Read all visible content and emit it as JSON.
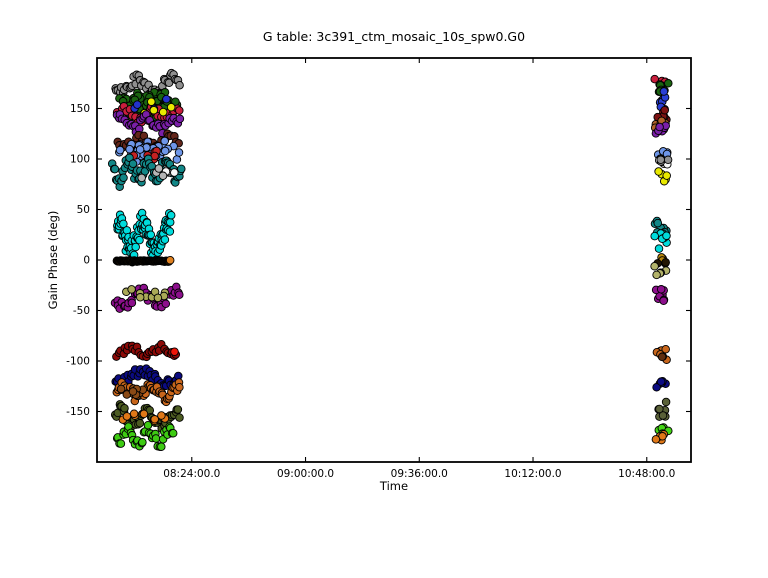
{
  "figure": {
    "background": "#ffffff",
    "frame_color": "#000000"
  },
  "chart_data": {
    "type": "scatter",
    "title": "G table: 3c391_ctm_mosaic_10s_spw0.G0",
    "xlabel": "Time",
    "ylabel": "Gain Phase (deg)",
    "grid": false,
    "legend": null,
    "marker": {
      "shape": "circle",
      "radius_px": 3.8,
      "edge_color": "#000000"
    },
    "x_axis": {
      "unit": "minutes_of_day",
      "lim": [
        474,
        662
      ],
      "tick_minutes": [
        504,
        540,
        576,
        612,
        648
      ],
      "tick_labels": [
        "08:24:00.0",
        "09:00:00.0",
        "09:36:00.0",
        "10:12:00.0",
        "10:48:00.0"
      ]
    },
    "y_axis": {
      "lim": [
        -200,
        200
      ],
      "ticks": [
        150,
        100,
        50,
        0,
        -50,
        -100,
        -150
      ],
      "tick_labels": [
        "150",
        "100",
        "50",
        "0",
        "-50",
        "-100",
        "-150"
      ]
    },
    "seed": 42,
    "clusters": [
      {
        "name": "left-gray-band",
        "color": "#8f8f8f",
        "n": 42,
        "t": [
          479.5,
          500.5
        ],
        "phase": [
          162,
          184
        ],
        "shape": "band"
      },
      {
        "name": "left-darkgreen-blob",
        "color": "#1a6410",
        "n": 78,
        "t": [
          480,
          500.5
        ],
        "phase": [
          138,
          170
        ],
        "shape": "blob"
      },
      {
        "name": "left-crimson-band",
        "color": "#c81e3c",
        "n": 26,
        "t": [
          480,
          500.5
        ],
        "phase": [
          136,
          154
        ],
        "shape": "band"
      },
      {
        "name": "left-blue-accents",
        "color": "#2333cc",
        "n": 4,
        "t": [
          481,
          499
        ],
        "phase": [
          141,
          166
        ],
        "shape": "blob"
      },
      {
        "name": "left-yellow-accents",
        "color": "#e9e900",
        "n": 5,
        "t": [
          483,
          500.5
        ],
        "phase": [
          136,
          170
        ],
        "shape": "blob"
      },
      {
        "name": "left-purple-band",
        "color": "#7a1fa8",
        "n": 33,
        "t": [
          480,
          500.5
        ],
        "phase": [
          126,
          144
        ],
        "shape": "band"
      },
      {
        "name": "left-maroon-band",
        "color": "#63261a",
        "n": 28,
        "t": [
          480,
          500
        ],
        "phase": [
          110,
          125
        ],
        "shape": "band"
      },
      {
        "name": "left-cornflower-blob",
        "color": "#6e96e8",
        "n": 58,
        "t": [
          479.5,
          501
        ],
        "phase": [
          95,
          120
        ],
        "shape": "blob"
      },
      {
        "name": "left-red-accents",
        "color": "#c42222",
        "n": 6,
        "t": [
          480,
          499
        ],
        "phase": [
          96,
          109
        ],
        "shape": "blob"
      },
      {
        "name": "left-teal-band",
        "color": "#128787",
        "n": 58,
        "t": [
          478.8,
          501
        ],
        "phase": [
          76,
          101
        ],
        "shape": "wavy"
      },
      {
        "name": "left-white-accents",
        "color": "#f7f7f7",
        "n": 4,
        "t": [
          491,
          501
        ],
        "phase": [
          81,
          96
        ],
        "shape": "blob"
      },
      {
        "name": "left-silver-accents",
        "color": "#b5b5b5",
        "n": 4,
        "t": [
          486,
          500
        ],
        "phase": [
          77,
          92
        ],
        "shape": "blob"
      },
      {
        "name": "left-cyan-wavy",
        "color": "#00dcdc",
        "n": 96,
        "t": [
          480.3,
          497.5
        ],
        "phase": [
          3,
          43
        ],
        "shape": "wavy"
      },
      {
        "name": "left-zero-bar",
        "color": "#221603",
        "n": 55,
        "t": [
          480.3,
          496.8
        ],
        "phase": [
          -2.5,
          0.5
        ],
        "shape": "bar"
      },
      {
        "name": "left-zero-orange-dot",
        "color": "#df8121",
        "n": 1,
        "t": [
          497,
          497.6
        ],
        "phase": [
          -2,
          0
        ],
        "shape": "spot"
      },
      {
        "name": "left-magenta-band",
        "color": "#8c0f8c",
        "n": 38,
        "t": [
          479.5,
          500.5
        ],
        "phase": [
          -49,
          -27
        ],
        "shape": "band"
      },
      {
        "name": "left-darkkhaki-accents",
        "color": "#aaa957",
        "n": 10,
        "t": [
          481,
          500
        ],
        "phase": [
          -41,
          -27
        ],
        "shape": "blob"
      },
      {
        "name": "left-darkred-band",
        "color": "#8c0a08",
        "n": 30,
        "t": [
          480,
          499.5
        ],
        "phase": [
          -97,
          -84
        ],
        "shape": "band"
      },
      {
        "name": "left-red-dot",
        "color": "#ee1608",
        "n": 1,
        "t": [
          498,
          499.4
        ],
        "phase": [
          -92,
          -89
        ],
        "shape": "spot"
      },
      {
        "name": "left-navy-band",
        "color": "#0b0b82",
        "n": 38,
        "t": [
          479.5,
          500
        ],
        "phase": [
          -125,
          -107
        ],
        "shape": "band"
      },
      {
        "name": "left-chocolate-band",
        "color": "#c8661c",
        "n": 46,
        "t": [
          480,
          500.5
        ],
        "phase": [
          -140,
          -121
        ],
        "shape": "band"
      },
      {
        "name": "left-saddle-accents",
        "color": "#8a4a16",
        "n": 10,
        "t": [
          480,
          491
        ],
        "phase": [
          -138,
          -124
        ],
        "shape": "blob"
      },
      {
        "name": "left-darkolive-band",
        "color": "#4d5c22",
        "n": 46,
        "t": [
          479.5,
          500.5
        ],
        "phase": [
          -167,
          -144
        ],
        "shape": "band"
      },
      {
        "name": "left-orange-accents",
        "color": "#e07818",
        "n": 9,
        "t": [
          480,
          499
        ],
        "phase": [
          -163,
          -146
        ],
        "shape": "blob"
      },
      {
        "name": "left-lime-band",
        "color": "#3ecb13",
        "n": 38,
        "t": [
          480,
          498.5
        ],
        "phase": [
          -185,
          -164
        ],
        "shape": "band"
      },
      {
        "name": "right-crimson",
        "color": "#c81e3c",
        "n": 3,
        "t": [
          650.2,
          655.3
        ],
        "phase": [
          173,
          185
        ],
        "shape": "spot"
      },
      {
        "name": "right-darkgreen",
        "color": "#1a6410",
        "n": 9,
        "t": [
          650.2,
          655.3
        ],
        "phase": [
          158,
          182
        ],
        "shape": "spot"
      },
      {
        "name": "right-blue",
        "color": "#2a3fd4",
        "n": 8,
        "t": [
          650.2,
          655.3
        ],
        "phase": [
          146,
          168
        ],
        "shape": "spot"
      },
      {
        "name": "right-darkred",
        "color": "#7c1212",
        "n": 6,
        "t": [
          650.2,
          655.3
        ],
        "phase": [
          137,
          153
        ],
        "shape": "spot"
      },
      {
        "name": "right-sienna",
        "color": "#b0622a",
        "n": 6,
        "t": [
          650.2,
          655.3
        ],
        "phase": [
          129,
          144
        ],
        "shape": "spot"
      },
      {
        "name": "right-purple",
        "color": "#7a1fa8",
        "n": 6,
        "t": [
          650.2,
          655.3
        ],
        "phase": [
          121,
          136
        ],
        "shape": "spot"
      },
      {
        "name": "right-cornflower",
        "color": "#6e96e8",
        "n": 7,
        "t": [
          650.2,
          655.3
        ],
        "phase": [
          97,
          114
        ],
        "shape": "spot"
      },
      {
        "name": "right-white",
        "color": "#f7f7f7",
        "n": 4,
        "t": [
          650.2,
          655.3
        ],
        "phase": [
          88,
          101
        ],
        "shape": "spot"
      },
      {
        "name": "right-gray",
        "color": "#8f8f8f",
        "n": 3,
        "t": [
          650.2,
          655.3
        ],
        "phase": [
          91,
          103
        ],
        "shape": "spot"
      },
      {
        "name": "right-yellow",
        "color": "#e9e900",
        "n": 5,
        "t": [
          650.2,
          655.3
        ],
        "phase": [
          77,
          92
        ],
        "shape": "spot"
      },
      {
        "name": "right-teal",
        "color": "#128787",
        "n": 9,
        "t": [
          650.2,
          655.3
        ],
        "phase": [
          22,
          43
        ],
        "shape": "spot"
      },
      {
        "name": "right-cyan",
        "color": "#00dcdc",
        "n": 7,
        "t": [
          650.2,
          655.3
        ],
        "phase": [
          9,
          27
        ],
        "shape": "spot"
      },
      {
        "name": "right-darkgoldenrod",
        "color": "#b8860b",
        "n": 3,
        "t": [
          650.2,
          655.3
        ],
        "phase": [
          -3,
          5
        ],
        "shape": "spot"
      },
      {
        "name": "right-darkbar",
        "color": "#221603",
        "n": 3,
        "t": [
          650.2,
          655.3
        ],
        "phase": [
          -7,
          2
        ],
        "shape": "spot"
      },
      {
        "name": "right-darkkhaki",
        "color": "#b3b36a",
        "n": 6,
        "t": [
          650.2,
          655.3
        ],
        "phase": [
          -18,
          -3
        ],
        "shape": "spot"
      },
      {
        "name": "right-magenta",
        "color": "#8c0f8c",
        "n": 8,
        "t": [
          650.2,
          655.3
        ],
        "phase": [
          -43,
          -26
        ],
        "shape": "spot"
      },
      {
        "name": "right-chocolate",
        "color": "#c8661c",
        "n": 6,
        "t": [
          650.2,
          655.3
        ],
        "phase": [
          -99,
          -86
        ],
        "shape": "spot"
      },
      {
        "name": "right-darkbrown",
        "color": "#5e2e10",
        "n": 2,
        "t": [
          650.2,
          655.3
        ],
        "phase": [
          -99,
          -89
        ],
        "shape": "spot"
      },
      {
        "name": "right-navy",
        "color": "#0b0b82",
        "n": 6,
        "t": [
          650.2,
          655.3
        ],
        "phase": [
          -128,
          -115
        ],
        "shape": "spot"
      },
      {
        "name": "right-olivegray",
        "color": "#5a6138",
        "n": 8,
        "t": [
          650.2,
          655.3
        ],
        "phase": [
          -160,
          -140
        ],
        "shape": "spot"
      },
      {
        "name": "right-lime",
        "color": "#44d615",
        "n": 7,
        "t": [
          650.2,
          655.3
        ],
        "phase": [
          -177,
          -162
        ],
        "shape": "spot"
      },
      {
        "name": "right-orange",
        "color": "#e07818",
        "n": 5,
        "t": [
          650.2,
          655.3
        ],
        "phase": [
          -187,
          -169
        ],
        "shape": "spot"
      }
    ]
  }
}
